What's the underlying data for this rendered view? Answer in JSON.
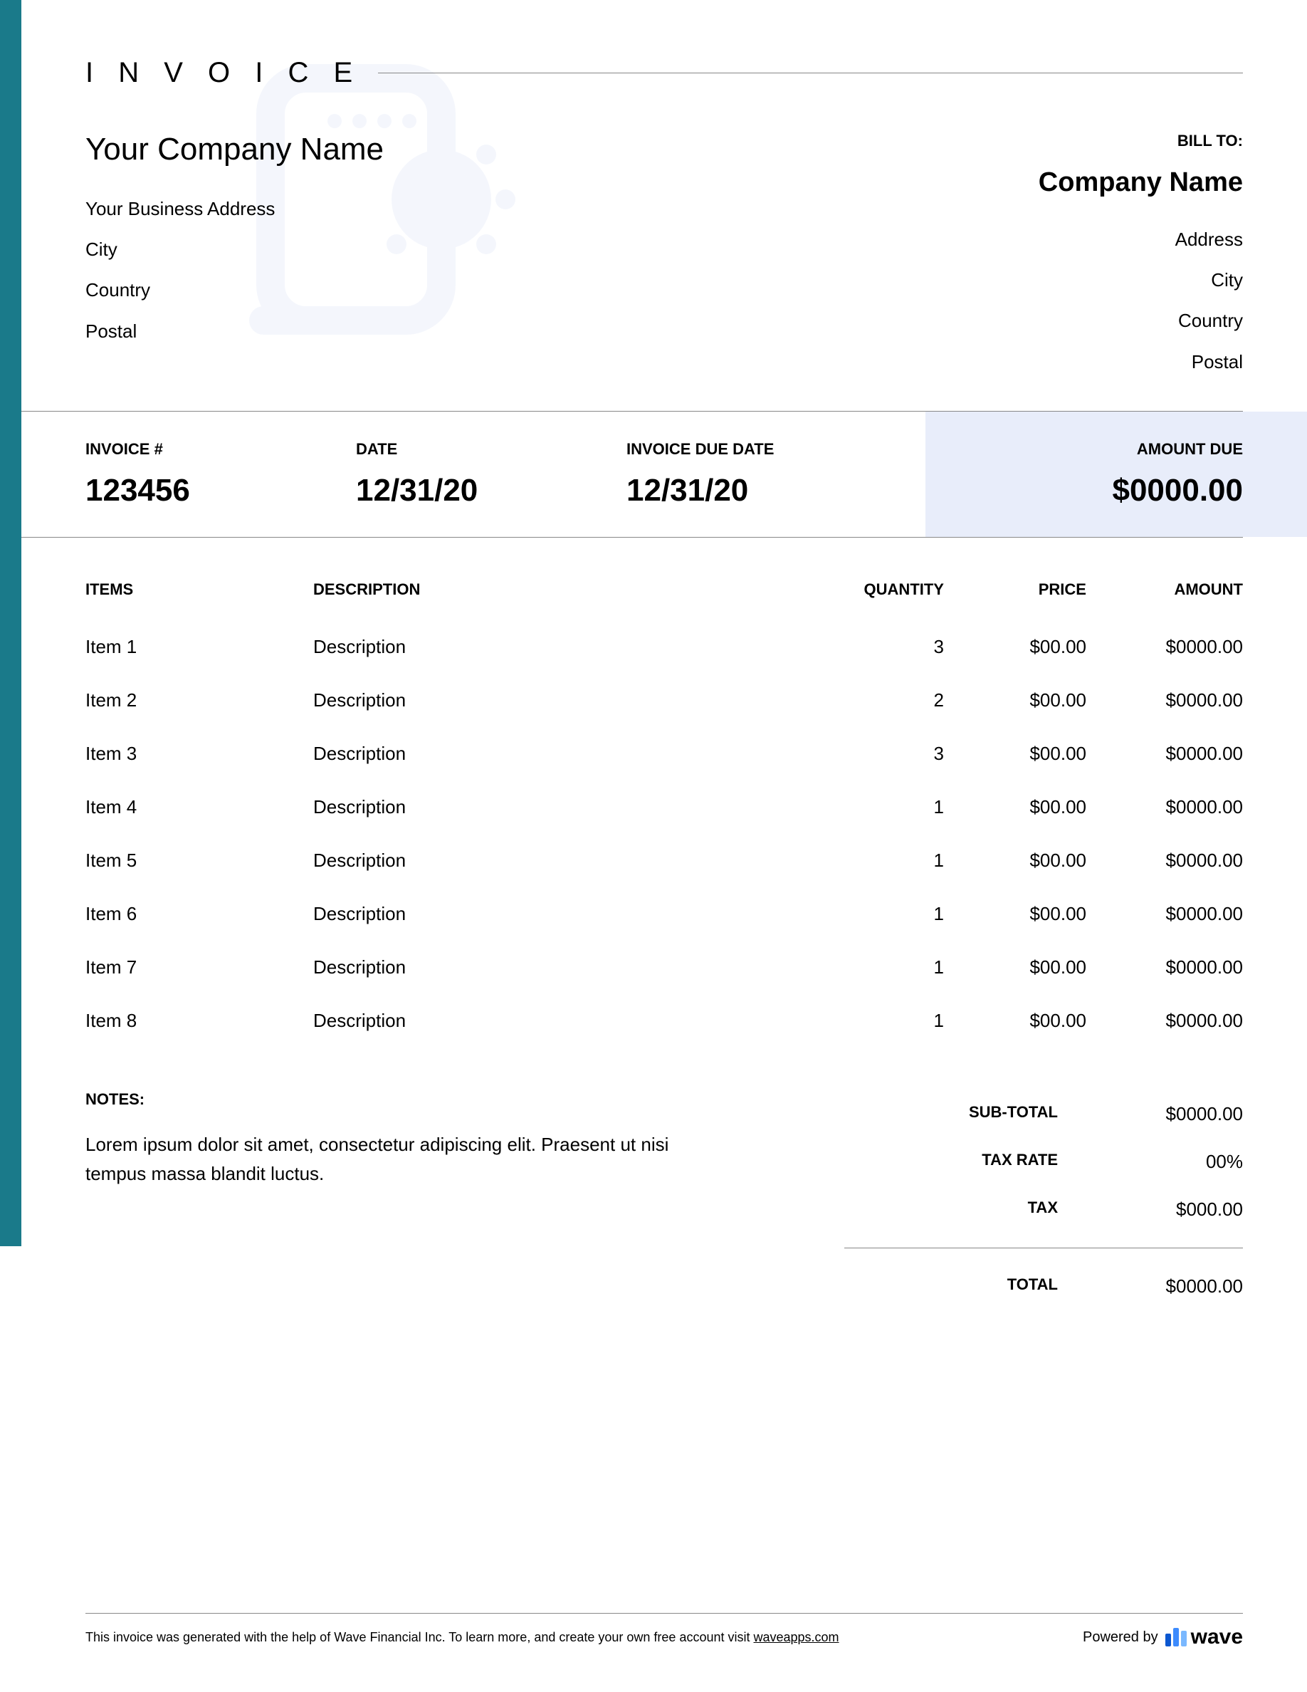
{
  "colors": {
    "accent": "#1a7a8a",
    "highlight_bg": "#e8edfa",
    "watermark": "#b8c9ef",
    "line": "#888888",
    "text": "#000000",
    "wave_bar1": "#0b57d0",
    "wave_bar2": "#3d8bfd",
    "wave_bar3": "#7ab8ff"
  },
  "header": {
    "title": "I N V O I C E"
  },
  "from": {
    "name": "Your Company Name",
    "address": "Your Business Address",
    "city": "City",
    "country": "Country",
    "postal": "Postal"
  },
  "to": {
    "label": "BILL TO:",
    "name": "Company Name",
    "address": "Address",
    "city": "City",
    "country": "Country",
    "postal": "Postal"
  },
  "meta": {
    "invoice_num_label": "INVOICE #",
    "invoice_num": "123456",
    "date_label": "DATE",
    "date": "12/31/20",
    "due_label": "INVOICE DUE DATE",
    "due": "12/31/20",
    "amount_due_label": "AMOUNT DUE",
    "amount_due": "$0000.00"
  },
  "columns": {
    "items": "ITEMS",
    "description": "DESCRIPTION",
    "quantity": "QUANTITY",
    "price": "PRICE",
    "amount": "AMOUNT"
  },
  "items": [
    {
      "name": "Item 1",
      "desc": "Description",
      "qty": "3",
      "price": "$00.00",
      "amount": "$0000.00"
    },
    {
      "name": "Item 2",
      "desc": "Description",
      "qty": "2",
      "price": "$00.00",
      "amount": "$0000.00"
    },
    {
      "name": "Item 3",
      "desc": "Description",
      "qty": "3",
      "price": "$00.00",
      "amount": "$0000.00"
    },
    {
      "name": "Item 4",
      "desc": "Description",
      "qty": "1",
      "price": "$00.00",
      "amount": "$0000.00"
    },
    {
      "name": "Item 5",
      "desc": "Description",
      "qty": "1",
      "price": "$00.00",
      "amount": "$0000.00"
    },
    {
      "name": "Item 6",
      "desc": "Description",
      "qty": "1",
      "price": "$00.00",
      "amount": "$0000.00"
    },
    {
      "name": "Item 7",
      "desc": "Description",
      "qty": "1",
      "price": "$00.00",
      "amount": "$0000.00"
    },
    {
      "name": "Item 8",
      "desc": "Description",
      "qty": "1",
      "price": "$00.00",
      "amount": "$0000.00"
    }
  ],
  "notes": {
    "label": "NOTES:",
    "text": "Lorem ipsum dolor sit amet, consectetur adipiscing elit. Praesent ut nisi tempus massa blandit luctus."
  },
  "totals": {
    "subtotal_label": "SUB-TOTAL",
    "subtotal": "$0000.00",
    "taxrate_label": "TAX RATE",
    "taxrate": "00%",
    "tax_label": "TAX",
    "tax": "$000.00",
    "total_label": "TOTAL",
    "total": "$0000.00"
  },
  "footer": {
    "text_prefix": "This invoice was generated with the help of Wave Financial Inc. To learn more, and create your own free account visit ",
    "link": "waveapps.com",
    "powered_by": "Powered by",
    "brand": "wave"
  }
}
